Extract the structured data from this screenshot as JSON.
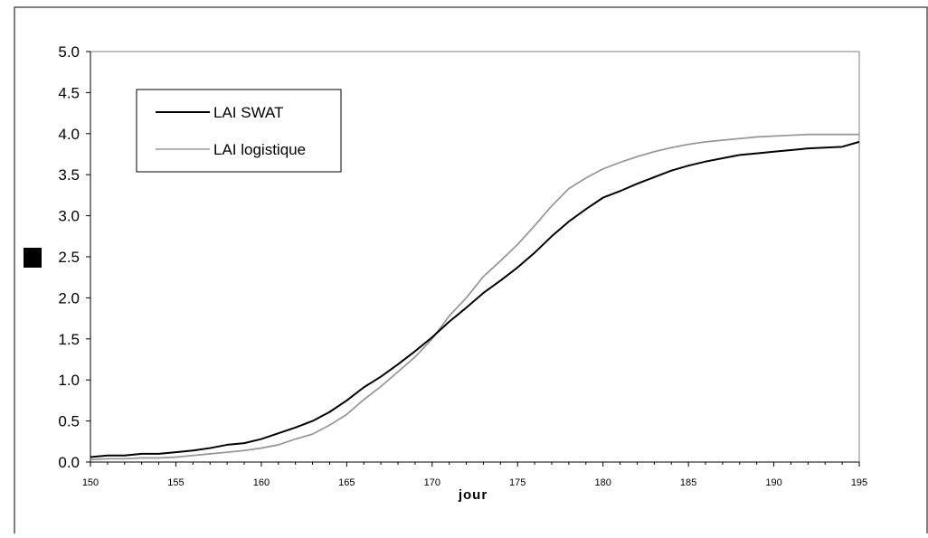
{
  "chart_data": {
    "type": "line",
    "title": "",
    "xlabel": "jour",
    "ylabel": "",
    "xlim": [
      150,
      195
    ],
    "ylim": [
      0,
      5
    ],
    "grid": false,
    "legend_position": "top-left",
    "x_ticks": [
      "150",
      "155",
      "160",
      "165",
      "170",
      "175",
      "180",
      "185",
      "190",
      "195"
    ],
    "y_ticks": [
      "0.0",
      "0.5",
      "1.0",
      "1.5",
      "2.0",
      "2.5",
      "3.0",
      "3.5",
      "4.0",
      "4.5",
      "5.0"
    ],
    "x": [
      150,
      151,
      152,
      153,
      154,
      155,
      156,
      157,
      158,
      159,
      160,
      161,
      162,
      163,
      164,
      165,
      166,
      167,
      168,
      169,
      170,
      171,
      172,
      173,
      174,
      175,
      176,
      177,
      178,
      179,
      180,
      181,
      182,
      183,
      184,
      185,
      186,
      187,
      188,
      189,
      190,
      191,
      192,
      193,
      194,
      195
    ],
    "series": [
      {
        "name": "LAI SWAT",
        "color": "#000000",
        "values": [
          0.06,
          0.08,
          0.08,
          0.1,
          0.1,
          0.12,
          0.14,
          0.17,
          0.21,
          0.23,
          0.28,
          0.35,
          0.42,
          0.5,
          0.61,
          0.75,
          0.91,
          1.04,
          1.19,
          1.35,
          1.52,
          1.71,
          1.88,
          2.06,
          2.21,
          2.37,
          2.55,
          2.75,
          2.93,
          3.08,
          3.22,
          3.3,
          3.39,
          3.47,
          3.55,
          3.61,
          3.66,
          3.7,
          3.74,
          3.76,
          3.78,
          3.8,
          3.82,
          3.83,
          3.84,
          3.9
        ]
      },
      {
        "name": "LAI logistique",
        "color": "#999999",
        "values": [
          0.03,
          0.04,
          0.04,
          0.05,
          0.05,
          0.06,
          0.08,
          0.1,
          0.12,
          0.14,
          0.17,
          0.21,
          0.28,
          0.34,
          0.45,
          0.58,
          0.76,
          0.92,
          1.1,
          1.28,
          1.5,
          1.78,
          2.0,
          2.26,
          2.45,
          2.65,
          2.88,
          3.12,
          3.33,
          3.46,
          3.57,
          3.65,
          3.72,
          3.78,
          3.83,
          3.87,
          3.9,
          3.92,
          3.94,
          3.96,
          3.97,
          3.98,
          3.99,
          3.99,
          3.99,
          3.99
        ]
      }
    ]
  }
}
